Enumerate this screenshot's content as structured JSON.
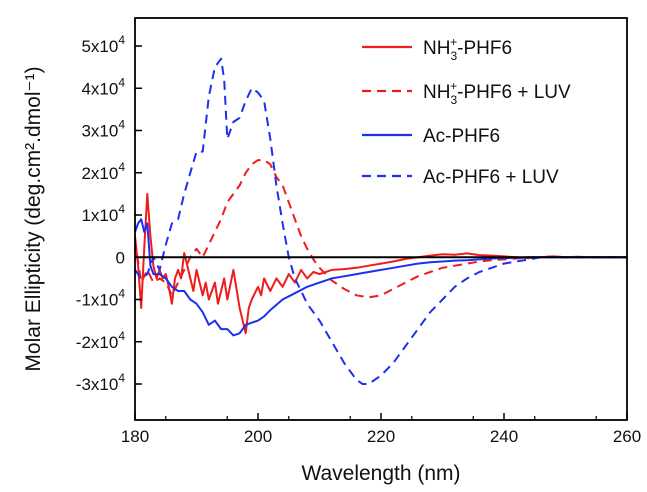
{
  "chart_data": {
    "type": "line",
    "xlabel": "Wavelength (nm)",
    "ylabel": "Molar Ellipticity (deg.cm².dmol⁻¹)",
    "xlim": [
      180,
      260
    ],
    "ylim": [
      -35000,
      55000
    ],
    "x_ticks": [
      180,
      200,
      220,
      240,
      260
    ],
    "x_tick_labels": [
      "180",
      "200",
      "220",
      "240",
      "260"
    ],
    "y_ticks": [
      50000,
      40000,
      30000,
      20000,
      10000,
      0,
      -10000,
      -20000,
      -30000
    ],
    "y_tick_labels": [
      {
        "mant": "5x10",
        "exp": "4"
      },
      {
        "mant": "4x10",
        "exp": "4"
      },
      {
        "mant": "3x10",
        "exp": "4"
      },
      {
        "mant": "2x10",
        "exp": "4"
      },
      {
        "mant": "1x10",
        "exp": "4"
      },
      {
        "mant": "0",
        "exp": ""
      },
      {
        "mant": "-1x10",
        "exp": "4"
      },
      {
        "mant": "-2x10",
        "exp": "4"
      },
      {
        "mant": "-3x10",
        "exp": "4"
      }
    ],
    "zero_line": true,
    "legend_position": "top-right",
    "series": [
      {
        "name": "NH3+-PHF6",
        "legend": {
          "pre": "NH",
          "sub": "3",
          "sup": "+",
          "post": "-PHF6"
        },
        "color": "#ee1c1c",
        "dash": "solid",
        "points": [
          [
            180,
            5000
          ],
          [
            180.5,
            -2000
          ],
          [
            181,
            -12000
          ],
          [
            181.5,
            2000
          ],
          [
            182,
            15000
          ],
          [
            182.5,
            5000
          ],
          [
            183,
            -2000
          ],
          [
            183.5,
            -5000
          ],
          [
            184,
            -3000
          ],
          [
            184.5,
            -5000
          ],
          [
            185,
            -4000
          ],
          [
            185.5,
            -7000
          ],
          [
            186,
            -11000
          ],
          [
            186.5,
            -5000
          ],
          [
            187,
            -3000
          ],
          [
            187.5,
            -5000
          ],
          [
            188,
            1000
          ],
          [
            188.5,
            -2000
          ],
          [
            189,
            -5000
          ],
          [
            189.5,
            -8000
          ],
          [
            190,
            -3000
          ],
          [
            191,
            -9000
          ],
          [
            191.5,
            -6000
          ],
          [
            192,
            -10000
          ],
          [
            193,
            -6000
          ],
          [
            193.5,
            -11000
          ],
          [
            194,
            -8000
          ],
          [
            194.5,
            -5000
          ],
          [
            195,
            -10000
          ],
          [
            196,
            -3000
          ],
          [
            197,
            -12000
          ],
          [
            198,
            -18000
          ],
          [
            198.5,
            -12000
          ],
          [
            199,
            -10000
          ],
          [
            200,
            -7000
          ],
          [
            200.5,
            -9000
          ],
          [
            201,
            -5000
          ],
          [
            202,
            -8000
          ],
          [
            203,
            -5000
          ],
          [
            204,
            -7000
          ],
          [
            205,
            -4000
          ],
          [
            206,
            -6000
          ],
          [
            207,
            -3000
          ],
          [
            208,
            -5000
          ],
          [
            209,
            -3500
          ],
          [
            210,
            -4000
          ],
          [
            212,
            -3000
          ],
          [
            214,
            -2800
          ],
          [
            216,
            -2500
          ],
          [
            218,
            -2000
          ],
          [
            220,
            -1500
          ],
          [
            222,
            -1000
          ],
          [
            224,
            -400
          ],
          [
            226,
            0
          ],
          [
            228,
            400
          ],
          [
            230,
            700
          ],
          [
            232,
            600
          ],
          [
            234,
            900
          ],
          [
            236,
            500
          ],
          [
            238,
            400
          ],
          [
            240,
            200
          ],
          [
            242,
            0
          ],
          [
            244,
            -200
          ],
          [
            246,
            0
          ],
          [
            248,
            200
          ],
          [
            250,
            0
          ],
          [
            252,
            100
          ],
          [
            254,
            0
          ],
          [
            256,
            0
          ],
          [
            258,
            0
          ],
          [
            260,
            0
          ]
        ]
      },
      {
        "name": "NH3+-PHF6 + LUV",
        "legend": {
          "pre": "NH",
          "sub": "3",
          "sup": "+",
          "post": "-PHF6 + LUV"
        },
        "color": "#ee1c1c",
        "dash": "dashed",
        "points": [
          [
            180,
            4000
          ],
          [
            181,
            -6000
          ],
          [
            182,
            -3000
          ],
          [
            183,
            -6000
          ],
          [
            184,
            -5000
          ],
          [
            185,
            -6000
          ],
          [
            186,
            -9000
          ],
          [
            187,
            -6000
          ],
          [
            188,
            -3000
          ],
          [
            189,
            0
          ],
          [
            190,
            2000
          ],
          [
            191,
            0
          ],
          [
            192,
            3000
          ],
          [
            193,
            6000
          ],
          [
            194,
            9000
          ],
          [
            195,
            13000
          ],
          [
            196,
            15000
          ],
          [
            197,
            17000
          ],
          [
            198,
            20000
          ],
          [
            199,
            22000
          ],
          [
            200,
            23000
          ],
          [
            201,
            23000
          ],
          [
            202,
            22000
          ],
          [
            203,
            19000
          ],
          [
            204,
            17000
          ],
          [
            205,
            13000
          ],
          [
            206,
            9000
          ],
          [
            207,
            5000
          ],
          [
            208,
            2000
          ],
          [
            209,
            -500
          ],
          [
            210,
            -2500
          ],
          [
            212,
            -5500
          ],
          [
            214,
            -7500
          ],
          [
            216,
            -9000
          ],
          [
            218,
            -9500
          ],
          [
            220,
            -9000
          ],
          [
            222,
            -7500
          ],
          [
            224,
            -6000
          ],
          [
            226,
            -4500
          ],
          [
            228,
            -3500
          ],
          [
            230,
            -2500
          ],
          [
            232,
            -2000
          ],
          [
            234,
            -1500
          ],
          [
            236,
            -1000
          ],
          [
            238,
            -700
          ],
          [
            240,
            -500
          ],
          [
            242,
            -300
          ],
          [
            244,
            0
          ],
          [
            246,
            0
          ],
          [
            248,
            200
          ],
          [
            250,
            0
          ],
          [
            254,
            0
          ],
          [
            258,
            0
          ],
          [
            260,
            0
          ]
        ]
      },
      {
        "name": "Ac-PHF6",
        "legend": {
          "pre": "Ac-PHF6",
          "sub": "",
          "sup": "",
          "post": ""
        },
        "color": "#1f2ff0",
        "dash": "solid",
        "points": [
          [
            180,
            6000
          ],
          [
            180.5,
            8000
          ],
          [
            181,
            9000
          ],
          [
            181.5,
            6000
          ],
          [
            182,
            8000
          ],
          [
            182.5,
            -2000
          ],
          [
            183,
            -4000
          ],
          [
            184,
            -4000
          ],
          [
            185,
            -5000
          ],
          [
            186,
            -7000
          ],
          [
            187,
            -8000
          ],
          [
            188,
            -8000
          ],
          [
            189,
            -10000
          ],
          [
            190,
            -11000
          ],
          [
            191,
            -13000
          ],
          [
            192,
            -16000
          ],
          [
            193,
            -15000
          ],
          [
            194,
            -17000
          ],
          [
            195,
            -17000
          ],
          [
            196,
            -18500
          ],
          [
            197,
            -18000
          ],
          [
            198,
            -16000
          ],
          [
            199,
            -15500
          ],
          [
            200,
            -15000
          ],
          [
            201,
            -14000
          ],
          [
            202,
            -12500
          ],
          [
            204,
            -10000
          ],
          [
            206,
            -8500
          ],
          [
            208,
            -7000
          ],
          [
            210,
            -6000
          ],
          [
            212,
            -5000
          ],
          [
            214,
            -4500
          ],
          [
            216,
            -4000
          ],
          [
            218,
            -3500
          ],
          [
            220,
            -3000
          ],
          [
            222,
            -2500
          ],
          [
            224,
            -2000
          ],
          [
            226,
            -1500
          ],
          [
            228,
            -1200
          ],
          [
            230,
            -1000
          ],
          [
            232,
            -800
          ],
          [
            234,
            -700
          ],
          [
            236,
            -500
          ],
          [
            238,
            -300
          ],
          [
            240,
            -200
          ],
          [
            242,
            -100
          ],
          [
            244,
            0
          ],
          [
            248,
            0
          ],
          [
            252,
            0
          ],
          [
            256,
            0
          ],
          [
            260,
            0
          ]
        ]
      },
      {
        "name": "Ac-PHF6 + LUV",
        "legend": {
          "pre": "Ac-PHF6 + LUV",
          "sub": "",
          "sup": "",
          "post": ""
        },
        "color": "#1f2ff0",
        "dash": "dashed",
        "points": [
          [
            180,
            -3000
          ],
          [
            181,
            -5000
          ],
          [
            182,
            -4000
          ],
          [
            183,
            0
          ],
          [
            184,
            -3000
          ],
          [
            185,
            3000
          ],
          [
            186,
            8000
          ],
          [
            187,
            9000
          ],
          [
            188,
            15000
          ],
          [
            189,
            20000
          ],
          [
            190,
            25000
          ],
          [
            191,
            25000
          ],
          [
            192,
            38000
          ],
          [
            193,
            45000
          ],
          [
            194,
            47000
          ],
          [
            194.5,
            42000
          ],
          [
            195,
            28000
          ],
          [
            196,
            32000
          ],
          [
            197,
            33000
          ],
          [
            198,
            37000
          ],
          [
            199,
            40000
          ],
          [
            200,
            39000
          ],
          [
            201,
            37000
          ],
          [
            202,
            28000
          ],
          [
            203,
            17000
          ],
          [
            204,
            8000
          ],
          [
            205,
            0
          ],
          [
            206,
            -5000
          ],
          [
            207,
            -8000
          ],
          [
            208,
            -11000
          ],
          [
            210,
            -15000
          ],
          [
            212,
            -20000
          ],
          [
            214,
            -25000
          ],
          [
            216,
            -29000
          ],
          [
            217,
            -30000
          ],
          [
            218,
            -30000
          ],
          [
            220,
            -28000
          ],
          [
            222,
            -25000
          ],
          [
            224,
            -21000
          ],
          [
            226,
            -17000
          ],
          [
            228,
            -13000
          ],
          [
            230,
            -10000
          ],
          [
            232,
            -7000
          ],
          [
            234,
            -5000
          ],
          [
            236,
            -3500
          ],
          [
            238,
            -2500
          ],
          [
            240,
            -1500
          ],
          [
            242,
            -1000
          ],
          [
            244,
            -500
          ],
          [
            246,
            0
          ],
          [
            250,
            0
          ],
          [
            254,
            0
          ],
          [
            258,
            0
          ],
          [
            260,
            0
          ]
        ]
      }
    ]
  }
}
